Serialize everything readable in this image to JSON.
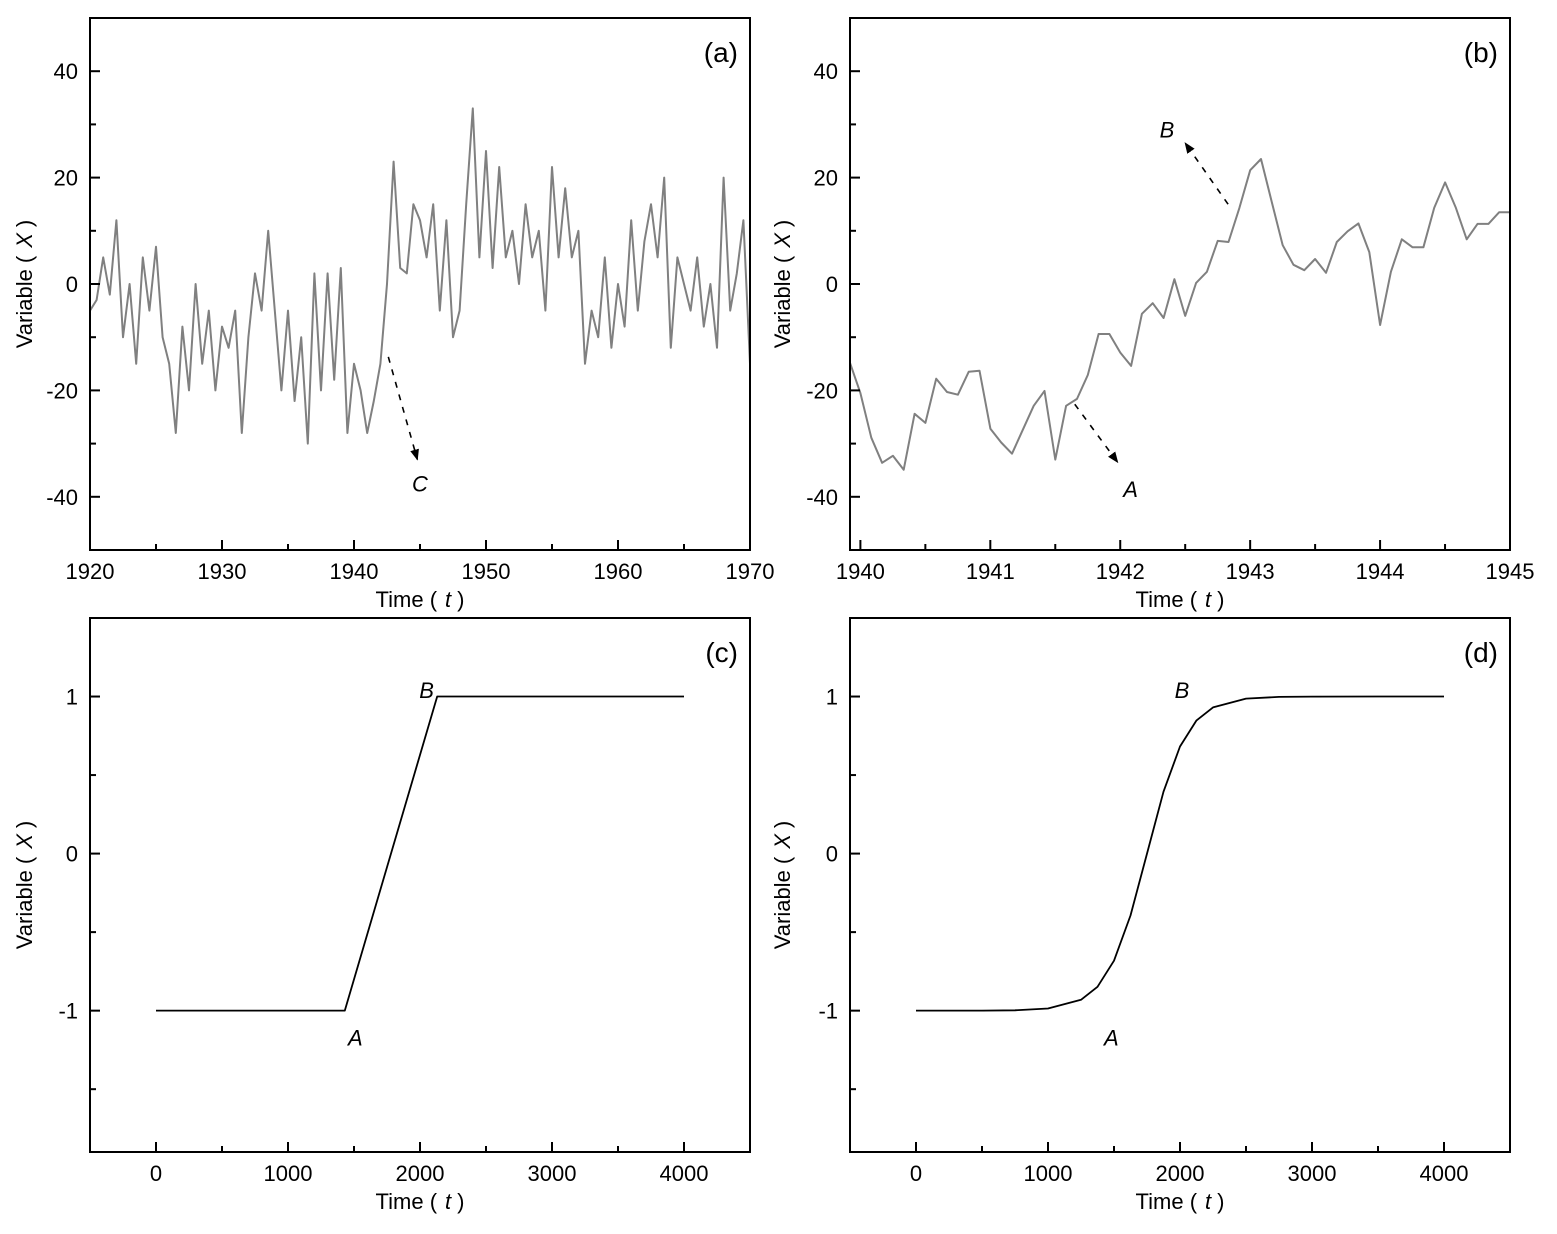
{
  "colors": {
    "series_a": "#808080",
    "series_b": "#808080",
    "series_cd": "#000000",
    "axis": "#000000"
  },
  "chart_data": [
    {
      "type": "line",
      "panel_label": "(a)",
      "xlabel": {
        "prefix": "Time (",
        "var": "t",
        "suffix": ")"
      },
      "ylabel": {
        "prefix": "Variable (",
        "var": "X",
        "suffix": ")"
      },
      "xlim": [
        1920,
        1970
      ],
      "ylim": [
        -50,
        50
      ],
      "xticks": [
        1920,
        1930,
        1940,
        1950,
        1960,
        1970
      ],
      "xtick_labels": [
        "1920",
        "1930",
        "1940",
        "1950",
        "1960",
        "1970"
      ],
      "xminor": 5,
      "yticks": [
        -40,
        -20,
        0,
        20,
        40
      ],
      "ytick_labels": [
        "-40",
        "-20",
        "0",
        "20",
        "40"
      ],
      "yminor": 10,
      "grid": false,
      "series": [
        {
          "name": "X",
          "x_start": 1920,
          "x_step": 0.5,
          "values": [
            -5,
            -3,
            5,
            -2,
            12,
            -10,
            0,
            -15,
            5,
            -5,
            7,
            -10,
            -15,
            -28,
            -8,
            -20,
            0,
            -15,
            -5,
            -20,
            -8,
            -12,
            -5,
            -28,
            -10,
            2,
            -5,
            10,
            -5,
            -20,
            -5,
            -22,
            -10,
            -30,
            2,
            -20,
            2,
            -18,
            3,
            -28,
            -15,
            -20,
            -28,
            -22,
            -15,
            0,
            23,
            3,
            2,
            15,
            12,
            5,
            15,
            -5,
            12,
            -10,
            -5,
            15,
            33,
            5,
            25,
            3,
            22,
            5,
            10,
            0,
            15,
            5,
            10,
            -5,
            22,
            5,
            18,
            5,
            10,
            -15,
            -5,
            -10,
            5,
            -12,
            0,
            -8,
            12,
            -5,
            8,
            15,
            5,
            20,
            -12,
            5,
            0,
            -5,
            5,
            -8,
            0,
            -12,
            20,
            -5,
            2,
            12,
            -15
          ]
        }
      ],
      "annotations": [
        {
          "text": "C",
          "from": [
            1942.6,
            -13.7
          ],
          "to": [
            1944.8,
            -33
          ],
          "label_at": [
            1945.0,
            -37.5
          ]
        }
      ]
    },
    {
      "type": "line",
      "panel_label": "(b)",
      "xlabel": {
        "prefix": "Time (",
        "var": "t",
        "suffix": ")"
      },
      "ylabel": {
        "prefix": "Variable (",
        "var": "X",
        "suffix": ")"
      },
      "xlim": [
        1939.92,
        1945
      ],
      "ylim": [
        -50,
        50
      ],
      "xticks": [
        1940,
        1941,
        1942,
        1943,
        1944,
        1945
      ],
      "xtick_labels": [
        "1940",
        "1941",
        "1942",
        "1943",
        "1944",
        "1945"
      ],
      "xminor": 0.5,
      "yticks": [
        -40,
        -20,
        0,
        20,
        40
      ],
      "ytick_labels": [
        "-40",
        "-20",
        "0",
        "20",
        "40"
      ],
      "yminor": 10,
      "grid": false,
      "series": [
        {
          "name": "X",
          "x_start": 1939.917,
          "x_step": 0.08333,
          "values": [
            -14.6,
            -20.5,
            -28.9,
            -33.6,
            -32.3,
            -34.9,
            -24.4,
            -26.1,
            -17.8,
            -20.3,
            -20.8,
            -16.5,
            -16.3,
            -27.2,
            -29.8,
            -31.9,
            -27.4,
            -22.9,
            -20.1,
            -33.0,
            -22.9,
            -21.6,
            -17.1,
            -9.4,
            -9.4,
            -12.9,
            -15.4,
            -5.6,
            -3.6,
            -6.4,
            0.9,
            -6.0,
            0.2,
            2.3,
            8.1,
            7.9,
            14.3,
            21.4,
            23.5,
            15.4,
            7.3,
            3.6,
            2.6,
            4.7,
            2.1,
            7.9,
            9.9,
            11.4,
            6.0,
            -7.7,
            2.3,
            8.4,
            6.9,
            6.9,
            14.3,
            19.1,
            14.3,
            8.4,
            11.3,
            11.3,
            13.5,
            13.5,
            11.6
          ]
        }
      ],
      "annotations": [
        {
          "text": "A",
          "from": [
            1941.65,
            -22.6
          ],
          "to": [
            1941.98,
            -33.5
          ],
          "label_at": [
            1942.08,
            -38.5
          ]
        },
        {
          "text": "B",
          "from": [
            1942.83,
            15
          ],
          "to": [
            1942.5,
            26.5
          ],
          "label_at": [
            1942.36,
            29
          ]
        }
      ]
    },
    {
      "type": "line",
      "panel_label": "(c)",
      "xlabel": {
        "prefix": "Time (",
        "var": "t",
        "suffix": ")"
      },
      "ylabel": {
        "prefix": "Variable (",
        "var": "X",
        "suffix": ")"
      },
      "xlim": [
        -500,
        4500
      ],
      "ylim": [
        -1.9,
        1.5
      ],
      "xticks": [
        0,
        1000,
        2000,
        3000,
        4000
      ],
      "xtick_labels": [
        "0",
        "1000",
        "2000",
        "3000",
        "4000"
      ],
      "xminor": 500,
      "yticks": [
        -1,
        0,
        1
      ],
      "ytick_labels": [
        "-1",
        "0",
        "1"
      ],
      "yminor": 0.5,
      "grid": false,
      "series": [
        {
          "name": "X",
          "points": [
            [
              0,
              -1
            ],
            [
              1430,
              -1
            ],
            [
              2130,
              1
            ],
            [
              4000,
              1
            ]
          ]
        }
      ],
      "annotations": [
        {
          "text": "A",
          "label_at": [
            1510,
            -1.17
          ]
        },
        {
          "text": "B",
          "label_at": [
            2050,
            1.04
          ]
        }
      ]
    },
    {
      "type": "line",
      "panel_label": "(d)",
      "xlabel": {
        "prefix": "Time (",
        "var": "t",
        "suffix": ")"
      },
      "ylabel": {
        "prefix": "Variable (",
        "var": "X",
        "suffix": ")"
      },
      "xlim": [
        -500,
        4500
      ],
      "ylim": [
        -1.9,
        1.5
      ],
      "xticks": [
        0,
        1000,
        2000,
        3000,
        4000
      ],
      "xtick_labels": [
        "0",
        "1000",
        "2000",
        "3000",
        "4000"
      ],
      "xminor": 500,
      "yticks": [
        -1,
        0,
        1
      ],
      "ytick_labels": [
        "-1",
        "0",
        "1"
      ],
      "yminor": 0.5,
      "grid": false,
      "series": [
        {
          "name": "X",
          "points": [
            [
              0,
              -1
            ],
            [
              250,
              -0.9999
            ],
            [
              500,
              -0.9995
            ],
            [
              750,
              -0.9975
            ],
            [
              1000,
              -0.9866
            ],
            [
              1250,
              -0.931
            ],
            [
              1375,
              -0.848
            ],
            [
              1500,
              -0.682
            ],
            [
              1625,
              -0.394
            ],
            [
              1750,
              0
            ],
            [
              1875,
              0.394
            ],
            [
              2000,
              0.682
            ],
            [
              2125,
              0.848
            ],
            [
              2250,
              0.931
            ],
            [
              2500,
              0.987
            ],
            [
              2750,
              0.9975
            ],
            [
              3000,
              0.9995
            ],
            [
              3500,
              1
            ],
            [
              4000,
              1
            ]
          ]
        }
      ],
      "annotations": [
        {
          "text": "A",
          "label_at": [
            1480,
            -1.17
          ]
        },
        {
          "text": "B",
          "label_at": [
            2015,
            1.04
          ]
        }
      ]
    }
  ]
}
